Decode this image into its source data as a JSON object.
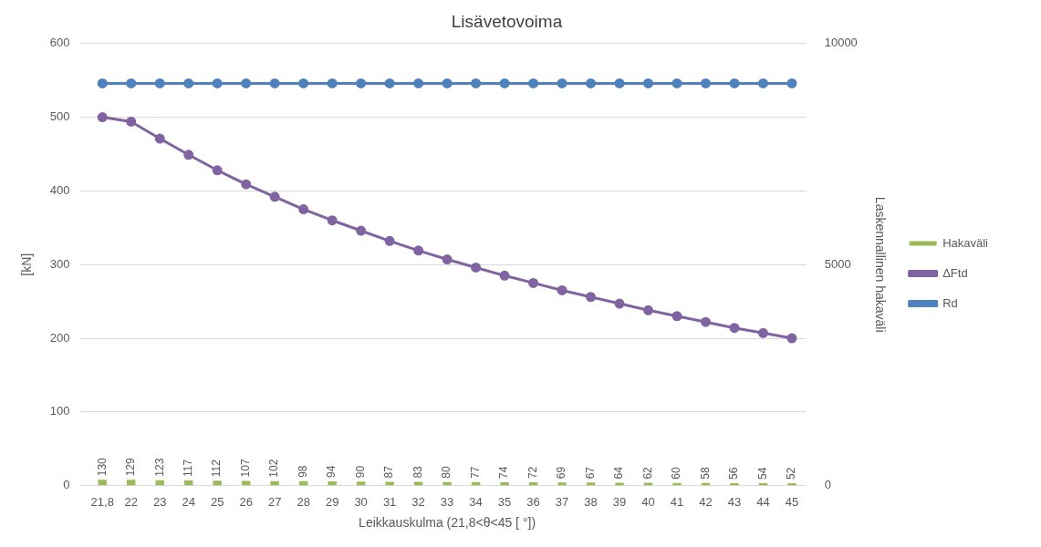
{
  "chart_data": {
    "type": "bar",
    "title": "Lisävetovoima",
    "xlabel": "Leikkauskulma (21,8<θ<45 [ °])",
    "ylabel": "[kN]",
    "y2label": "Laskennallinen hakaväli",
    "categories": [
      "21,8",
      "22",
      "23",
      "24",
      "25",
      "26",
      "27",
      "28",
      "29",
      "30",
      "31",
      "32",
      "33",
      "34",
      "35",
      "36",
      "37",
      "38",
      "39",
      "40",
      "41",
      "42",
      "43",
      "44",
      "45"
    ],
    "series": [
      {
        "name": "Hakaväli",
        "axis": "y2",
        "color": "#9bbb59",
        "data_labels": true,
        "values": [
          130,
          129,
          123,
          117,
          112,
          107,
          102,
          98,
          94,
          90,
          87,
          83,
          80,
          77,
          74,
          72,
          69,
          67,
          64,
          62,
          60,
          58,
          56,
          54,
          52
        ]
      },
      {
        "name": "ΔFtd",
        "type": "line",
        "color": "#8064a2",
        "values": [
          500,
          494,
          471,
          449,
          428,
          409,
          392,
          375,
          360,
          346,
          332,
          319,
          307,
          296,
          285,
          275,
          265,
          256,
          247,
          238,
          230,
          222,
          214,
          207,
          200
        ]
      },
      {
        "name": "Rd",
        "type": "line",
        "color": "#4f81bd",
        "values": [
          546,
          546,
          546,
          546,
          546,
          546,
          546,
          546,
          546,
          546,
          546,
          546,
          546,
          546,
          546,
          546,
          546,
          546,
          546,
          546,
          546,
          546,
          546,
          546,
          546
        ]
      }
    ],
    "ylim": [
      0,
      600
    ],
    "yticks": [
      0,
      100,
      200,
      300,
      400,
      500,
      600
    ],
    "y2lim": [
      0,
      10000
    ],
    "y2ticks": [
      0,
      5000,
      10000
    ],
    "grid": "y",
    "legend": "right",
    "marker": "circle",
    "line_style": "solid"
  }
}
